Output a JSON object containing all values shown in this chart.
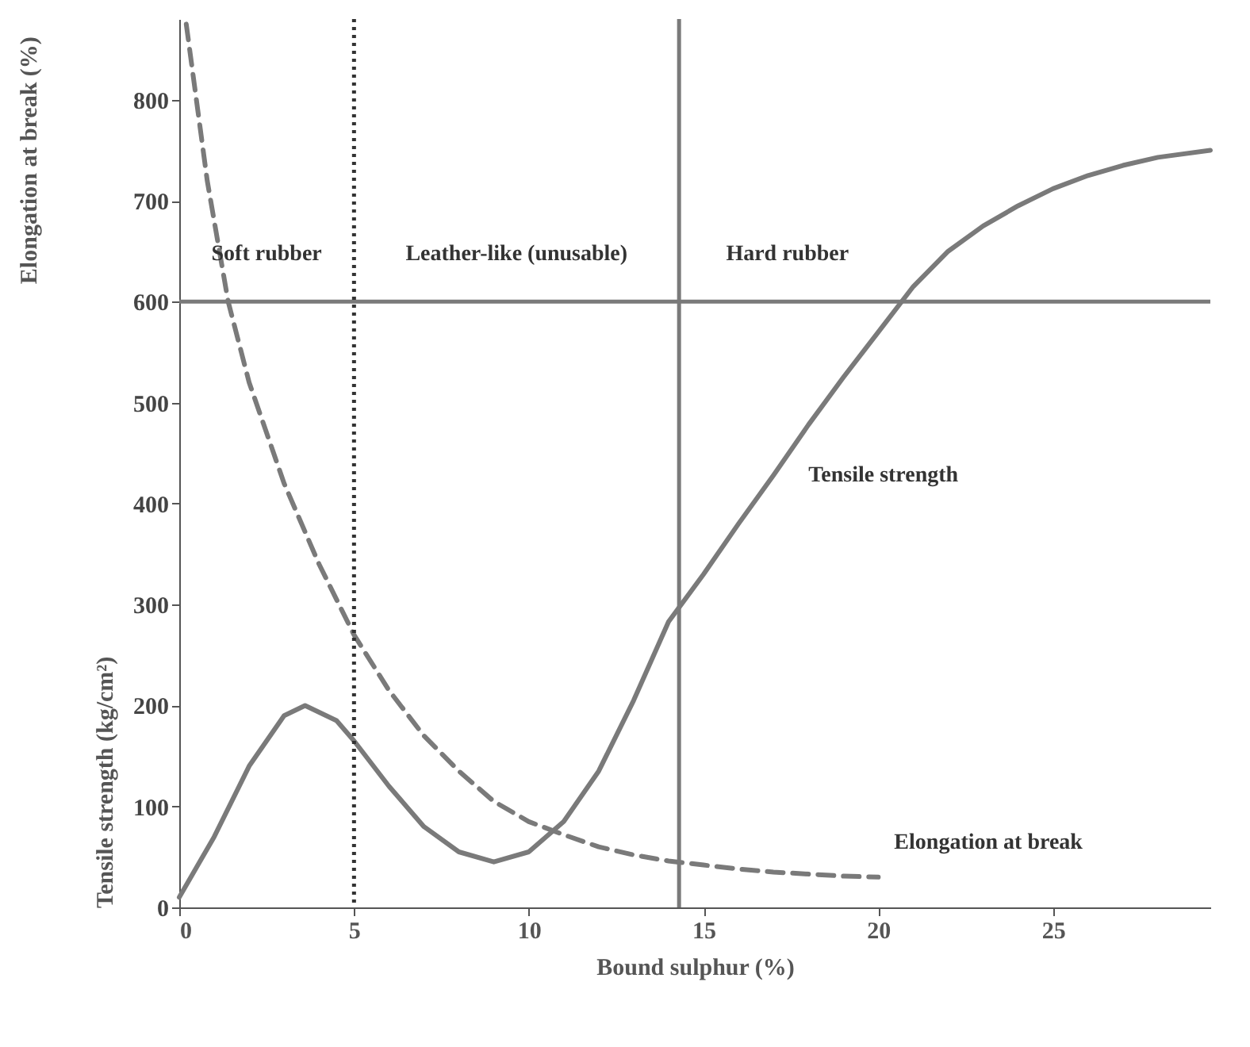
{
  "chart_data": {
    "type": "line",
    "xlabel": "Bound sulphur (%)",
    "ylabel": "Tensile strength (kg/cm²)",
    "y2label": "Elongation at break (%)",
    "xlim": [
      0,
      29.5
    ],
    "xticks": [
      0,
      5,
      10,
      15,
      20,
      25
    ],
    "ylim": [
      0,
      880
    ],
    "yticks": [
      0,
      100,
      200,
      300,
      400,
      500,
      600,
      700,
      800
    ],
    "grid": false,
    "legend": false,
    "series": [
      {
        "name": "Tensile strength",
        "color": "#7a7a7a",
        "line_style": "solid",
        "x": [
          0,
          1,
          2,
          3,
          3.6,
          4.5,
          5,
          6,
          7,
          8,
          9,
          10,
          11,
          12,
          13,
          14,
          15,
          16,
          17,
          18,
          19,
          20,
          21,
          22,
          23,
          24,
          25,
          26,
          27,
          28,
          29.5
        ],
        "values": [
          10,
          70,
          140,
          190,
          200,
          185,
          165,
          120,
          80,
          55,
          45,
          55,
          85,
          135,
          205,
          283,
          330,
          380,
          428,
          478,
          525,
          570,
          615,
          650,
          675,
          695,
          712,
          725,
          735,
          743,
          750
        ]
      },
      {
        "name": "Elongation at break",
        "color": "#7a7a7a",
        "line_style": "dashed",
        "x": [
          0.2,
          0.8,
          1.4,
          2,
          3,
          4,
          5,
          6,
          7,
          8,
          9,
          10,
          11,
          12,
          13,
          14,
          15,
          16,
          17,
          18,
          19,
          20
        ],
        "values": [
          875,
          720,
          600,
          520,
          420,
          340,
          270,
          215,
          170,
          135,
          105,
          85,
          72,
          60,
          52,
          46,
          42,
          38,
          35,
          33,
          31,
          30
        ]
      }
    ],
    "ref_lines": [
      {
        "axis": "y",
        "value": 600,
        "color": "#7a7a7a",
        "line_style": "solid"
      },
      {
        "axis": "x",
        "value": 5,
        "color": "#333333",
        "line_style": "dotted"
      },
      {
        "axis": "x",
        "value": 14.3,
        "color": "#7a7a7a",
        "line_style": "solid"
      }
    ],
    "annotations": [
      "Soft rubber",
      "Leather-like (unusable)",
      "Hard rubber"
    ]
  }
}
